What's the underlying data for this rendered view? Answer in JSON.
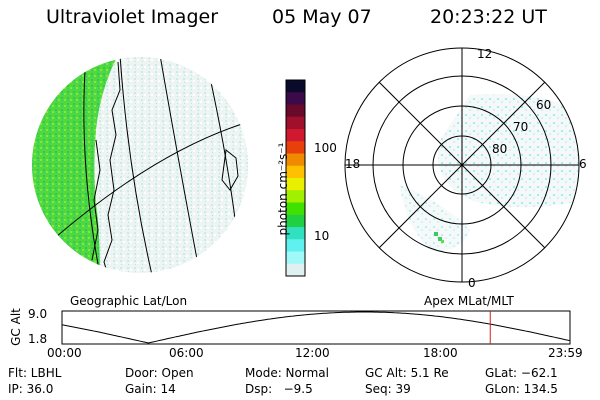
{
  "header": {
    "instrument": "Ultraviolet Imager",
    "date": "05 May 07",
    "time": "20:23:22 UT"
  },
  "colorbar": {
    "label": "photon cm⁻²s⁻¹",
    "ticks": [
      "100",
      "10"
    ],
    "colors": [
      "#0a0a2a",
      "#3a0a4a",
      "#6a0a2a",
      "#a0102a",
      "#d01830",
      "#e8400a",
      "#f08a00",
      "#ffc000",
      "#e8f000",
      "#a0f000",
      "#40e000",
      "#20d040",
      "#30e0c0",
      "#60f0f0",
      "#a0f8f8",
      "#e0f0f0"
    ]
  },
  "geo_map": {
    "label": "Geographic Lat/Lon"
  },
  "polar_map": {
    "label": "Apex MLat/MLT",
    "mlt_labels": {
      "top": "12",
      "bottom": "0",
      "left": "18",
      "right": "6"
    },
    "lat_labels": [
      "60",
      "70",
      "80"
    ]
  },
  "timeline": {
    "ylabel": "GC Alt",
    "y_ticks": [
      "9.0",
      "1.8"
    ],
    "x_ticks": [
      "00:00",
      "06:00",
      "12:00",
      "18:00",
      "23:59"
    ],
    "current_time_fraction": 0.843,
    "marker_color": "#d02020"
  },
  "footer": {
    "filter": "Flt: LBHL",
    "door": "Door: Open",
    "mode": "Mode: Normal",
    "gc_alt": "GC Alt: 5.1 Re",
    "glat": "GLat: −62.1",
    "ip": "IP: 36.0",
    "gain": "Gain: 14",
    "dsp": "Dsp:   −9.5",
    "seq": "Seq: 39",
    "glon": "GLon: 134.5"
  }
}
